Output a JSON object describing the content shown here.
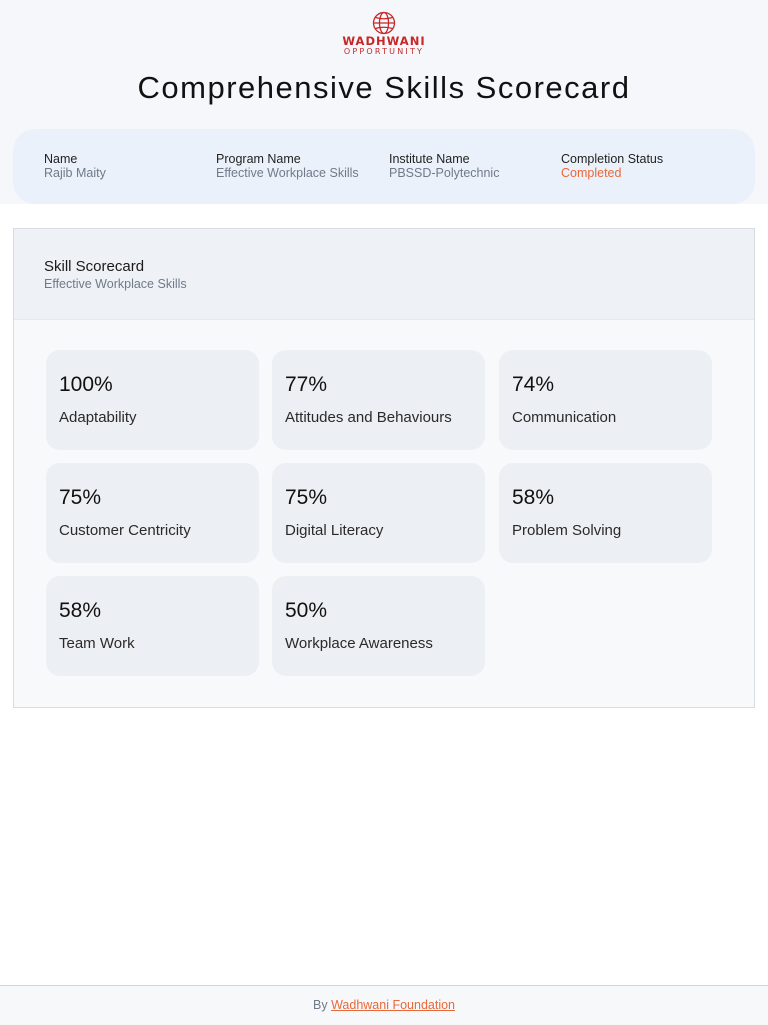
{
  "brand": {
    "logo_text": "WADHWANI",
    "logo_subtext": "OPPORTUNITY",
    "accent_color": "#c62828",
    "logo_icon": "globe-icon"
  },
  "page_title": "Comprehensive Skills Scorecard",
  "profile": {
    "name_label": "Name",
    "name_value": "Rajib Maity",
    "program_label": "Program Name",
    "program_value": "Effective Workplace Skills",
    "institute_label": "Institute Name",
    "institute_value": "PBSSD-Polytechnic",
    "status_label": "Completion Status",
    "status_value": "Completed",
    "status_color": "#e8683a"
  },
  "scorecard": {
    "title": "Skill Scorecard",
    "subtitle": "Effective Workplace Skills",
    "skills": [
      {
        "percent": "100%",
        "name": "Adaptability"
      },
      {
        "percent": "77%",
        "name": "Attitudes and Behaviours"
      },
      {
        "percent": "74%",
        "name": "Communication"
      },
      {
        "percent": "75%",
        "name": "Customer Centricity"
      },
      {
        "percent": "75%",
        "name": "Digital Literacy"
      },
      {
        "percent": "58%",
        "name": "Problem Solving"
      },
      {
        "percent": "58%",
        "name": "Team Work"
      },
      {
        "percent": "50%",
        "name": "Workplace Awareness"
      }
    ]
  },
  "footer": {
    "prefix": "By",
    "link_text": "Wadhwani Foundation"
  }
}
